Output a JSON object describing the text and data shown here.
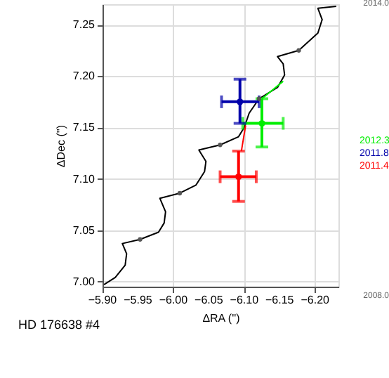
{
  "chart_data": {
    "type": "line",
    "xlabel": "ΔRA ('')",
    "ylabel": "ΔDec ('')",
    "xlim": [
      -5.9,
      -6.233
    ],
    "ylim": [
      6.995,
      7.27
    ],
    "xticks": [
      {
        "value": -5.9,
        "label": "−5.90"
      },
      {
        "value": -5.95,
        "label": "−5.95"
      },
      {
        "value": -6.0,
        "label": "−6.00"
      },
      {
        "value": -6.05,
        "label": "−6.05"
      },
      {
        "value": -6.1,
        "label": "−6.10"
      },
      {
        "value": -6.15,
        "label": "−6.15"
      },
      {
        "value": -6.2,
        "label": "−6.20"
      }
    ],
    "yticks": [
      {
        "value": 7.0,
        "label": "7.00"
      },
      {
        "value": 7.05,
        "label": "7.05"
      },
      {
        "value": 7.1,
        "label": "7.10"
      },
      {
        "value": 7.15,
        "label": "7.15"
      },
      {
        "value": 7.2,
        "label": "7.20"
      },
      {
        "value": 7.25,
        "label": "7.25"
      }
    ],
    "grid": true,
    "series": [
      {
        "type": "line",
        "color": "#000000",
        "marker": "none",
        "x": [
          -5.902,
          -5.918,
          -5.932,
          -5.934,
          -5.928,
          -5.953,
          -5.979,
          -5.987,
          -5.989,
          -5.981,
          -6.009,
          -6.032,
          -6.044,
          -6.046,
          -6.036,
          -6.066,
          -6.092,
          -6.1,
          -6.107,
          -6.121,
          -6.147,
          -6.157,
          -6.155,
          -6.147,
          -6.177,
          -6.204,
          -6.21,
          -6.204,
          -6.23
        ],
        "values": [
          6.997,
          7.004,
          7.016,
          7.027,
          7.037,
          7.041,
          7.048,
          7.057,
          7.068,
          7.081,
          7.086,
          7.094,
          7.107,
          7.117,
          7.128,
          7.133,
          7.141,
          7.15,
          7.164,
          7.178,
          7.189,
          7.201,
          7.212,
          7.219,
          7.225,
          7.242,
          7.255,
          7.266,
          7.268
        ]
      },
      {
        "type": "scatter",
        "color": "#555555",
        "marker": "circle",
        "x": [
          -5.953,
          -6.009,
          -6.066,
          -6.121,
          -6.177
        ],
        "values": [
          7.041,
          7.086,
          7.133,
          7.178,
          7.225
        ]
      },
      {
        "type": "line",
        "color": "#00ee00",
        "marker": "none",
        "x": [
          -6.125,
          -6.155
        ],
        "values": [
          7.178,
          7.195
        ]
      },
      {
        "type": "line",
        "color": "#ff0000",
        "marker": "none",
        "x": [
          -6.096,
          -6.102
        ],
        "values": [
          7.127,
          7.152
        ]
      },
      {
        "type": "scatter",
        "name": "2012.3",
        "color": "#00ee00",
        "marker": "circle",
        "x": [
          -6.125
        ],
        "values": [
          7.154
        ],
        "xerrors": [
          [
            -6.098,
            -6.155
          ]
        ],
        "errors": [
          [
            7.131,
            7.178
          ]
        ]
      },
      {
        "type": "scatter",
        "name": "2011.8",
        "color": "#0000aa",
        "marker": "circle",
        "x": [
          -6.094
        ],
        "values": [
          7.175
        ],
        "xerrors": [
          [
            -6.068,
            -6.121
          ]
        ],
        "errors": [
          [
            7.154,
            7.197
          ]
        ]
      },
      {
        "type": "scatter",
        "name": "2011.4",
        "color": "#ff0000",
        "marker": "circle",
        "x": [
          -6.092
        ],
        "values": [
          7.102
        ],
        "xerrors": [
          [
            -6.066,
            -6.117
          ]
        ],
        "errors": [
          [
            7.078,
            7.127
          ]
        ]
      }
    ],
    "annotations": [
      "2014.0",
      "2008.0",
      "HD 176638 #4"
    ]
  }
}
